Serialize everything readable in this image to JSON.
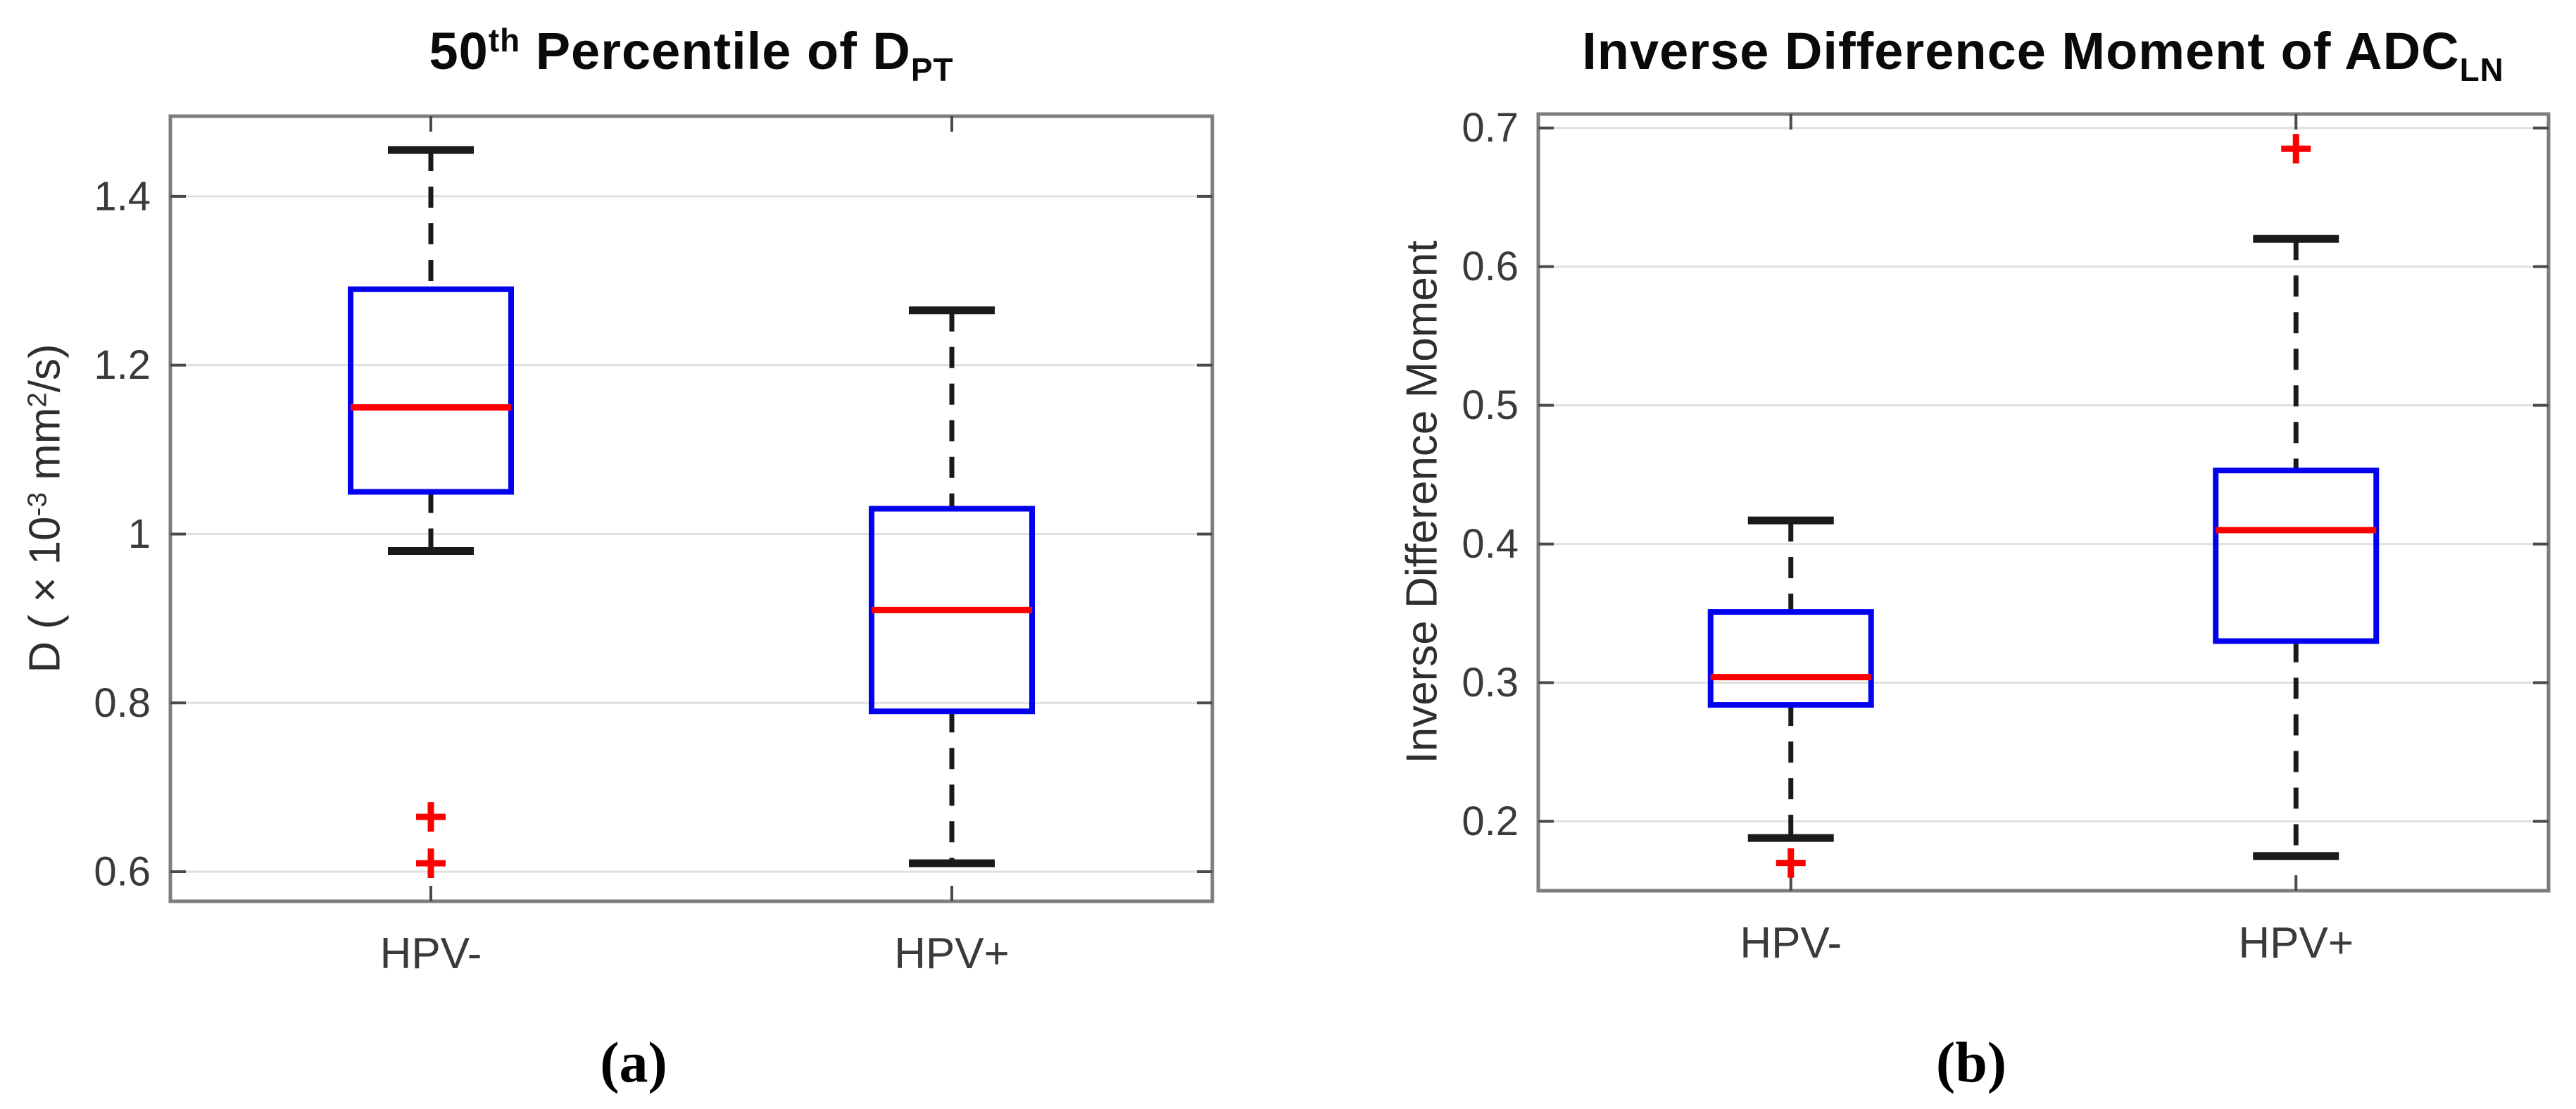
{
  "figure": {
    "background": "#ffffff",
    "captions": {
      "a": "(a)",
      "b": "(b)"
    }
  },
  "colors": {
    "box": "#0202ee",
    "median": "#fb0000",
    "whisker": "#1a1a1a",
    "whisker_cap": "#1a1a1a",
    "outlier": "#fb0000",
    "grid": "#e0e0e0",
    "frame": "#7d7d7d",
    "tick": "#4a4a4a",
    "tick_label": "#3a3a3a",
    "x_tick_label": "#3a3a3a"
  },
  "chart_data": [
    {
      "type": "boxplot",
      "panel": "a",
      "title": {
        "p1": "50",
        "sup1": "th",
        "p2": " Percentile  of D",
        "sub1": "PT"
      },
      "ylabel": {
        "p1": "D ( × 10",
        "sup1": "-3",
        "p2": " mm",
        "sup2": "2",
        "p3": "/s)"
      },
      "categories": [
        "HPV-",
        "HPV+"
      ],
      "ylim": [
        0.565,
        1.495
      ],
      "yticks": [
        0.6,
        0.8,
        1.0,
        1.2,
        1.4
      ],
      "ytick_labels": [
        "0.6",
        "0.8",
        "1",
        "1.2",
        "1.4"
      ],
      "grid": true,
      "series": [
        {
          "category": "HPV-",
          "whisker_low": 0.98,
          "q1": 1.05,
          "median": 1.15,
          "q3": 1.29,
          "whisker_high": 1.455,
          "outliers": [
            0.665,
            0.61
          ]
        },
        {
          "category": "HPV+",
          "whisker_low": 0.61,
          "q1": 0.79,
          "median": 0.91,
          "q3": 1.03,
          "whisker_high": 1.265,
          "outliers": []
        }
      ]
    },
    {
      "type": "boxplot",
      "panel": "b",
      "title": {
        "p1": "Inverse Difference Moment of ADC",
        "sub1": "LN"
      },
      "ylabel": {
        "p1": "Inverse Difference Moment"
      },
      "categories": [
        "HPV-",
        "HPV+"
      ],
      "ylim": [
        0.15,
        0.71
      ],
      "yticks": [
        0.2,
        0.3,
        0.4,
        0.5,
        0.6,
        0.7
      ],
      "ytick_labels": [
        "0.2",
        "0.3",
        "0.4",
        "0.5",
        "0.6",
        "0.7"
      ],
      "grid": true,
      "series": [
        {
          "category": "HPV-",
          "whisker_low": 0.188,
          "q1": 0.284,
          "median": 0.304,
          "q3": 0.351,
          "whisker_high": 0.417,
          "outliers": [
            0.17
          ]
        },
        {
          "category": "HPV+",
          "whisker_low": 0.175,
          "q1": 0.33,
          "median": 0.41,
          "q3": 0.453,
          "whisker_high": 0.62,
          "outliers": [
            0.685
          ]
        }
      ]
    }
  ]
}
